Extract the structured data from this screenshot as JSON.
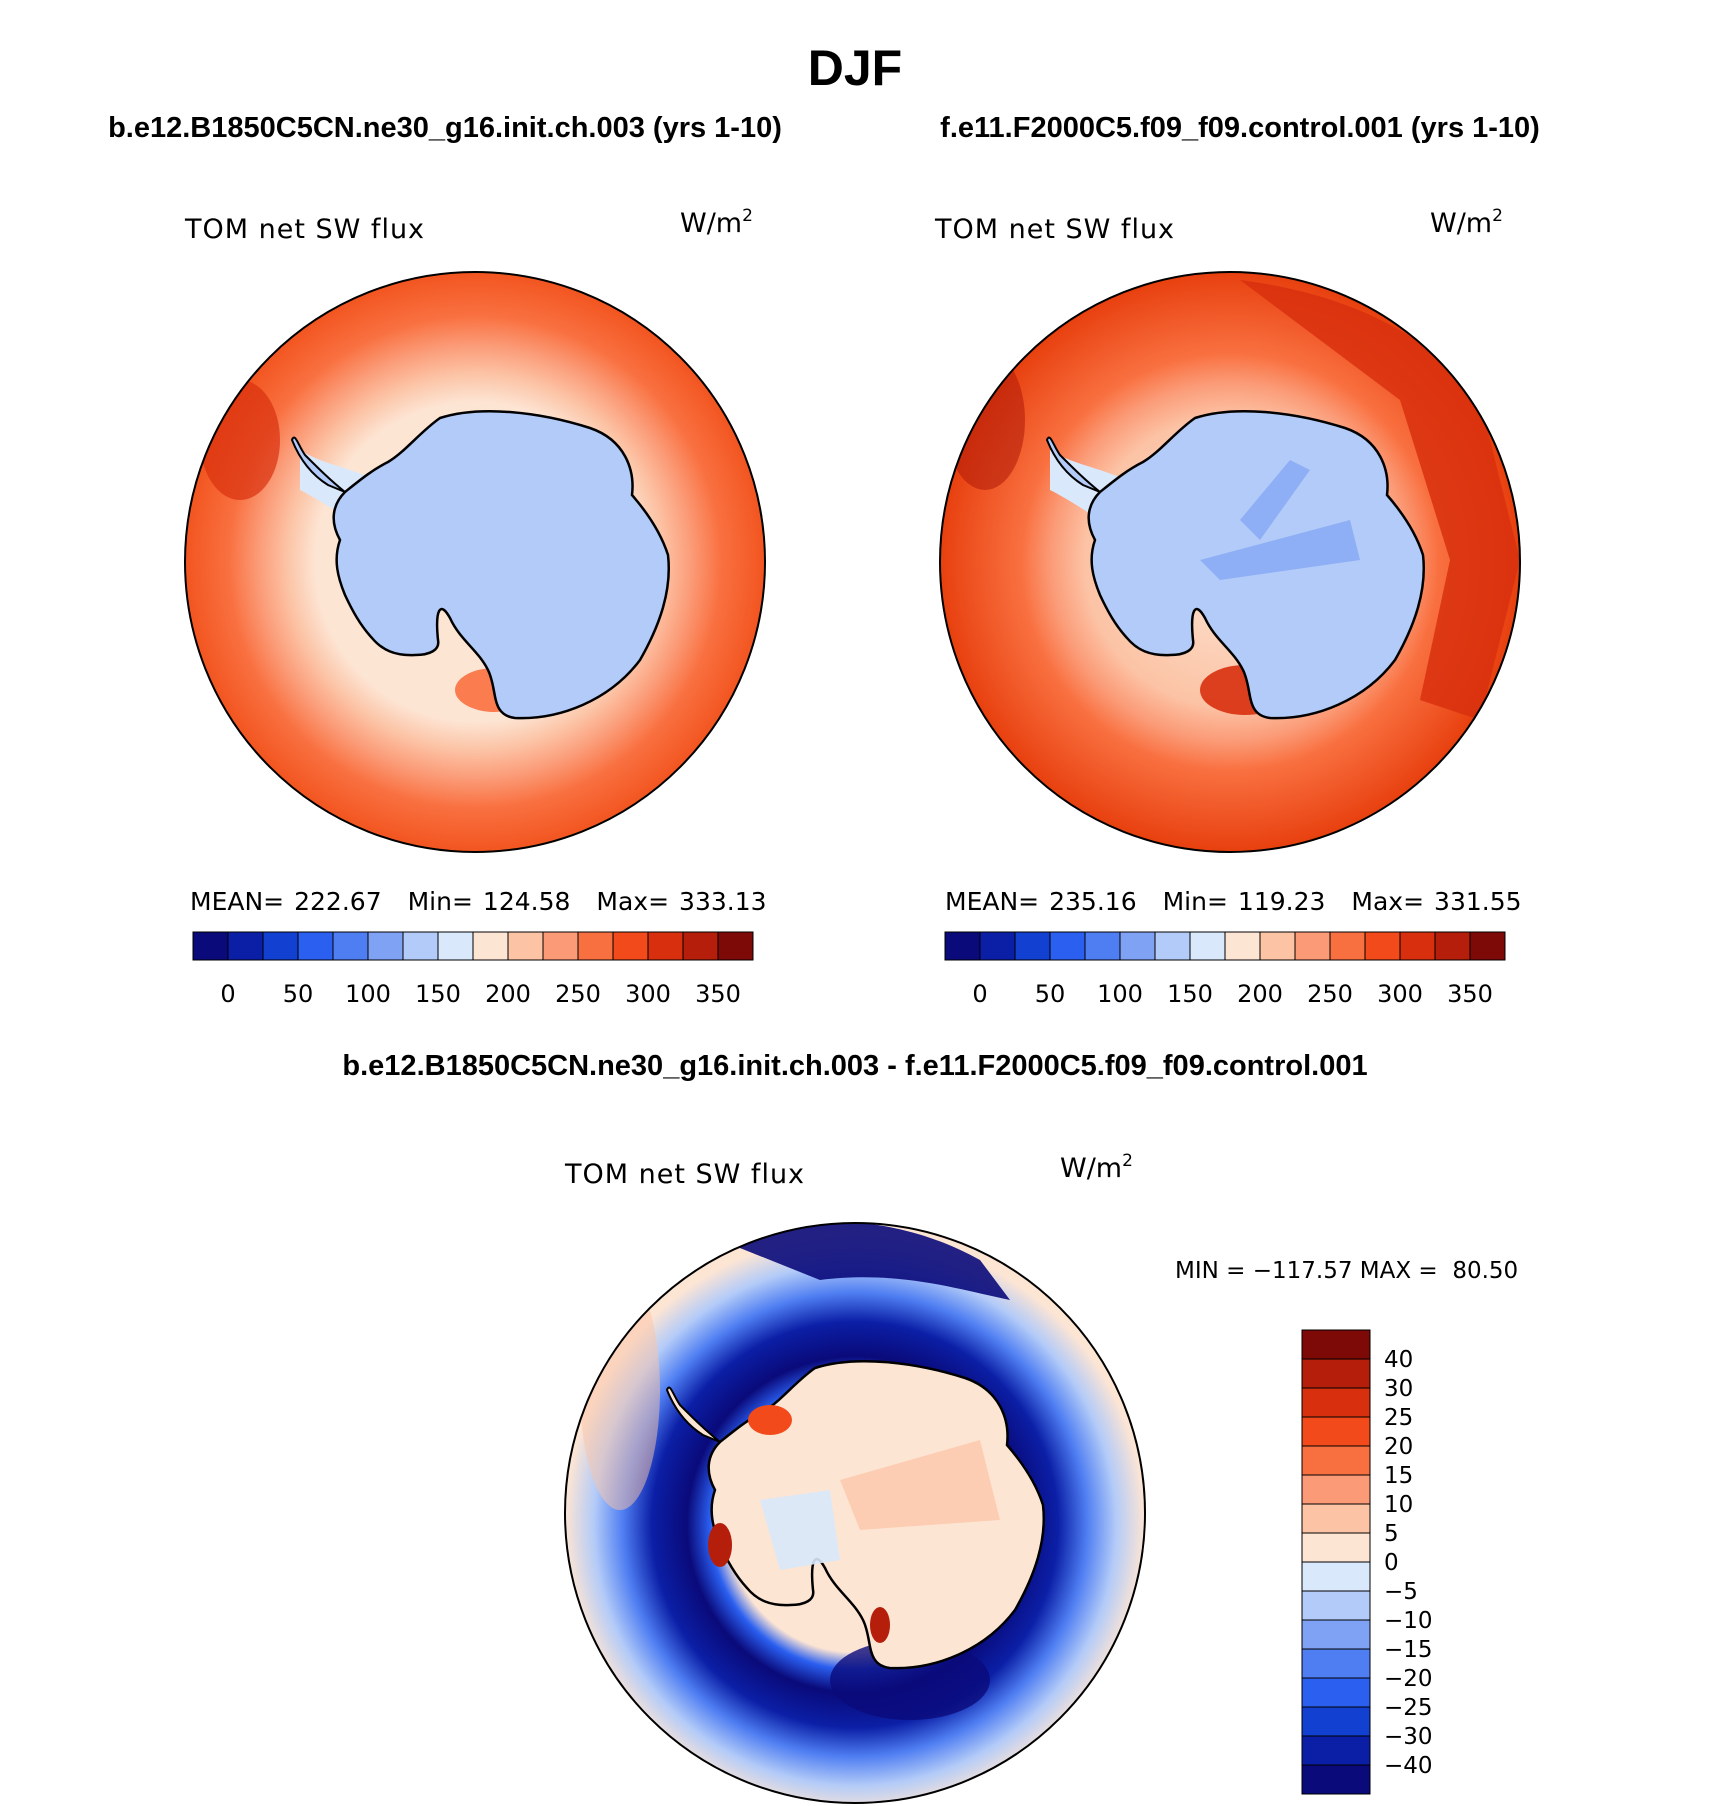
{
  "figure": {
    "season": "DJF",
    "left_title": "b.e12.B1850C5CN.ne30_g16.init.ch.003 (yrs 1-10)",
    "right_title": "f.e11.F2000C5.f09_f09.control.001 (yrs 1-10)",
    "diff_title": "b.e12.B1850C5CN.ne30_g16.init.ch.003 - f.e11.F2000C5.f09_f09.control.001"
  },
  "chart_data": [
    {
      "type": "contour-map",
      "projection": "south-polar-stereographic",
      "variable": "TOM net SW flux",
      "units": "W/m",
      "units_sup": "2",
      "stats": {
        "mean_label": "MEAN=",
        "mean": "222.67",
        "min_label": "Min=",
        "min": "124.58",
        "max_label": "Max=",
        "max": "333.13"
      },
      "levels": [
        0,
        25,
        50,
        75,
        100,
        125,
        150,
        175,
        200,
        225,
        250,
        275,
        300,
        325,
        350
      ],
      "tick_labels": [
        "0",
        "50",
        "100",
        "150",
        "200",
        "250",
        "300",
        "350"
      ],
      "colors": [
        "#0a0a7a",
        "#0b1fa6",
        "#1240d0",
        "#2a5ff0",
        "#4f7ef2",
        "#7fa2f4",
        "#b3cbf8",
        "#d9e8fb",
        "#fde5d4",
        "#fcc3a5",
        "#fb9a76",
        "#f97040",
        "#f24a1a",
        "#d8300e",
        "#b41e0a",
        "#7e0a08"
      ]
    },
    {
      "type": "contour-map",
      "projection": "south-polar-stereographic",
      "variable": "TOM net SW flux",
      "units": "W/m",
      "units_sup": "2",
      "stats": {
        "mean_label": "MEAN=",
        "mean": "235.16",
        "min_label": "Min=",
        "min": "119.23",
        "max_label": "Max=",
        "max": "331.55"
      },
      "levels": [
        0,
        25,
        50,
        75,
        100,
        125,
        150,
        175,
        200,
        225,
        250,
        275,
        300,
        325,
        350
      ],
      "tick_labels": [
        "0",
        "50",
        "100",
        "150",
        "200",
        "250",
        "300",
        "350"
      ],
      "colors": [
        "#0a0a7a",
        "#0b1fa6",
        "#1240d0",
        "#2a5ff0",
        "#4f7ef2",
        "#7fa2f4",
        "#b3cbf8",
        "#d9e8fb",
        "#fde5d4",
        "#fcc3a5",
        "#fb9a76",
        "#f97040",
        "#f24a1a",
        "#d8300e",
        "#b41e0a",
        "#7e0a08"
      ]
    },
    {
      "type": "contour-map-difference",
      "projection": "south-polar-stereographic",
      "variable": "TOM net SW flux",
      "units": "W/m",
      "units_sup": "2",
      "stats_label": "MIN = −117.57 MAX =  80.50",
      "min": -117.57,
      "max": 80.5,
      "tick_labels": [
        "40",
        "30",
        "25",
        "20",
        "15",
        "10",
        "5",
        "0",
        "−5",
        "−10",
        "−15",
        "−20",
        "−25",
        "−30",
        "−40"
      ],
      "colors": [
        "#7e0a08",
        "#b41e0a",
        "#d8300e",
        "#f24a1a",
        "#f97040",
        "#fb9a76",
        "#fcc3a5",
        "#fde5d4",
        "#d9e8fb",
        "#b3cbf8",
        "#7fa2f4",
        "#4f7ef2",
        "#2a5ff0",
        "#1240d0",
        "#0b1fa6",
        "#0a0a7a"
      ]
    }
  ]
}
